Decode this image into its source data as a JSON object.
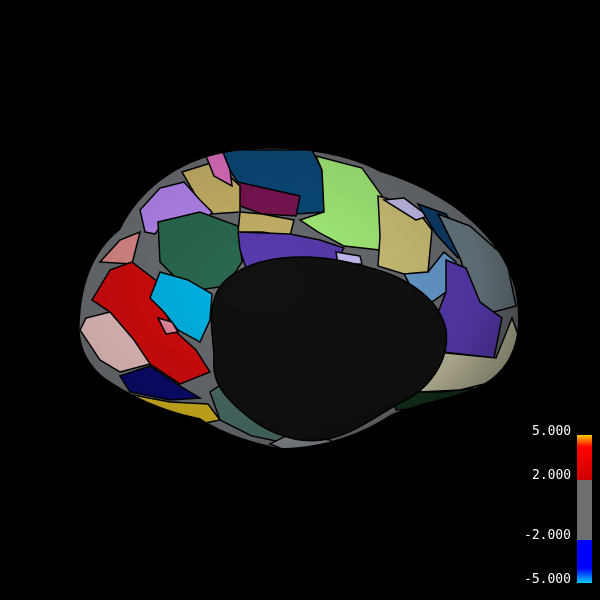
{
  "viewer": {
    "background": "#000000",
    "surface": "inflated cortical surface, medial view, parcellation overlay"
  },
  "colorbar": {
    "ticks": [
      "5.000",
      "2.000",
      "-2.000",
      "-5.000"
    ],
    "colors": {
      "top_hot": "#ffcc00",
      "hot": "#ff0000",
      "dark_hot": "#cc0000",
      "neutral": "#6e6e6e",
      "cold": "#0000ff",
      "top_cold": "#00ccff"
    }
  },
  "parcel_colors": {
    "medial_wall": "#111111",
    "superior_frontal": "#14b4a0",
    "paracentral": "#3cdc3c",
    "precuneus": "#a08cb4",
    "cuneus": "#dcb48c",
    "lingual": "#e18c8c",
    "pericalcarine": "#78643c",
    "isthmus_cingulate": "#8c148c",
    "posterior_cingulate": "#dcb4dc",
    "caudal_anterior_cingulate": "#7d64a0",
    "rostral_anterior_cingulate": "#501488",
    "medial_orbitofrontal": "#c8234b",
    "parahippocampal": "#14dc3c",
    "entorhinal": "#dc140a",
    "temporal_pole": "#464646",
    "fusiform": "#b4dc8c"
  }
}
